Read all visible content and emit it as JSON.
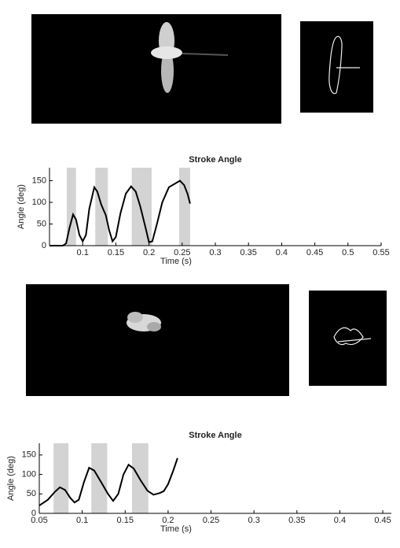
{
  "chart_data": [
    {
      "type": "line",
      "title": "Stroke Angle",
      "x_label": "Time (s)",
      "y_label": "Angle (deg)",
      "color": "#000000",
      "shade_color": "#d3d3d3",
      "xlim": [
        0.05,
        0.55
      ],
      "xticks": [
        0.1,
        0.15,
        0.2,
        0.25,
        0.3,
        0.35,
        0.4,
        0.45,
        0.5,
        0.55
      ],
      "ylim": [
        0,
        180
      ],
      "yticks": [
        0,
        50,
        100,
        150
      ],
      "shaded_regions": [
        [
          0.076,
          0.09
        ],
        [
          0.119,
          0.138
        ],
        [
          0.174,
          0.204
        ],
        [
          0.2455,
          0.262
        ]
      ],
      "x": [
        0.05,
        0.07,
        0.075,
        0.08,
        0.0855,
        0.09,
        0.095,
        0.1,
        0.105,
        0.11,
        0.1175,
        0.122,
        0.128,
        0.135,
        0.14,
        0.145,
        0.15,
        0.157,
        0.165,
        0.173,
        0.18,
        0.187,
        0.195,
        0.2,
        0.205,
        0.212,
        0.22,
        0.23,
        0.2467,
        0.253,
        0.258,
        0.262
      ],
      "values": [
        0,
        0,
        5,
        40,
        72,
        60,
        25,
        10,
        25,
        85,
        135,
        125,
        95,
        70,
        35,
        10,
        20,
        75,
        120,
        137,
        125,
        90,
        40,
        8,
        10,
        50,
        100,
        135,
        150,
        140,
        120,
        97
      ]
    },
    {
      "type": "line",
      "title": "Stroke Angle",
      "x_label": "Time (s)",
      "y_label": "Angle (deg)",
      "color": "#000000",
      "shade_color": "#d3d3d3",
      "xlim": [
        0.05,
        0.46
      ],
      "xticks": [
        0.05,
        0.1,
        0.15,
        0.2,
        0.25,
        0.3,
        0.35,
        0.4,
        0.45
      ],
      "ylim": [
        0,
        180
      ],
      "yticks": [
        0,
        50,
        100,
        150
      ],
      "shaded_regions": [
        [
          0.0666,
          0.084
        ],
        [
          0.1106,
          0.129
        ],
        [
          0.158,
          0.177
        ]
      ],
      "x": [
        0.05,
        0.06,
        0.068,
        0.074,
        0.08,
        0.086,
        0.091,
        0.096,
        0.102,
        0.108,
        0.114,
        0.122,
        0.13,
        0.136,
        0.142,
        0.148,
        0.154,
        0.16,
        0.168,
        0.176,
        0.183,
        0.19,
        0.195,
        0.2,
        0.206,
        0.211
      ],
      "values": [
        20,
        35,
        55,
        67,
        60,
        40,
        28,
        35,
        80,
        117,
        110,
        80,
        50,
        32,
        50,
        100,
        125,
        115,
        85,
        58,
        48,
        52,
        57,
        75,
        110,
        142
      ]
    }
  ]
}
